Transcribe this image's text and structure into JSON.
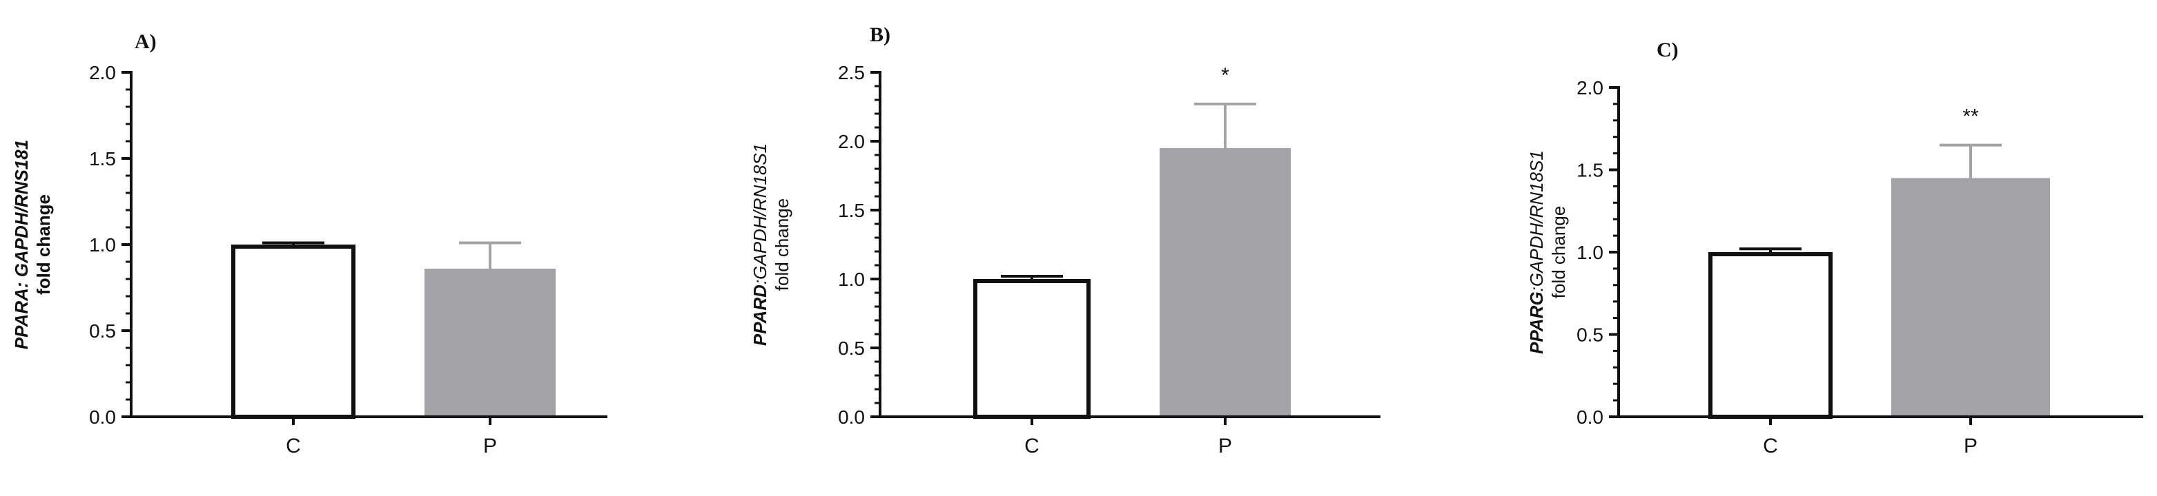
{
  "colors": {
    "axis": "#111111",
    "control_fill": "#ffffff",
    "control_edge": "#111111",
    "treatment_fill": "#a3a3a7",
    "errorbar": "#a3a3a7"
  },
  "chart_data": [
    {
      "type": "bar",
      "panel": "A)",
      "ylabel_gene": "PPARA",
      "ylabel_ref": ": GAPDH/RNS181",
      "ylabel_line2": "fold change",
      "categories": [
        "C",
        "P"
      ],
      "values": [
        1.0,
        0.86
      ],
      "errors": [
        0.01,
        0.15
      ],
      "significance": [
        "",
        ""
      ],
      "ylim": [
        0,
        2.0
      ],
      "yticks": [
        "0.0",
        "0.5",
        "1.0",
        "1.5",
        "2.0"
      ],
      "grid": false,
      "legend": "none"
    },
    {
      "type": "bar",
      "panel": "B)",
      "ylabel_gene": "PPARD",
      "ylabel_ref": ":GAPDH/RN18S1",
      "ylabel_line2": "fold change",
      "categories": [
        "C",
        "P"
      ],
      "values": [
        1.0,
        1.95
      ],
      "errors": [
        0.02,
        0.32
      ],
      "significance": [
        "",
        "*"
      ],
      "ylim": [
        0,
        2.5
      ],
      "yticks": [
        "0.0",
        "0.5",
        "1.0",
        "1.5",
        "2.0",
        "2.5"
      ],
      "grid": false,
      "legend": "none"
    },
    {
      "type": "bar",
      "panel": "C)",
      "ylabel_gene": "PPARG",
      "ylabel_ref": ":GAPDH/RN18S1",
      "ylabel_line2": "fold change",
      "categories": [
        "C",
        "P"
      ],
      "values": [
        1.0,
        1.45
      ],
      "errors": [
        0.02,
        0.2
      ],
      "significance": [
        "",
        "**"
      ],
      "ylim": [
        0,
        2.0
      ],
      "yticks": [
        "0.0",
        "0.5",
        "1.0",
        "1.5",
        "2.0"
      ],
      "grid": false,
      "legend": "none"
    }
  ]
}
